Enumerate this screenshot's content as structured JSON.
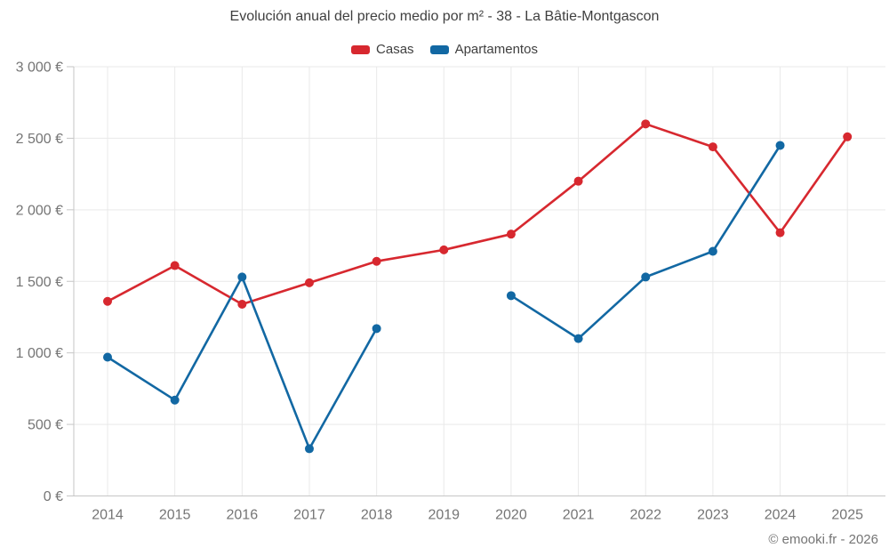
{
  "chart": {
    "title": "Evolución anual del precio medio por m² - 38 - La Bâtie-Montgascon",
    "footer": "© emooki.fr - 2026"
  },
  "chart_data": {
    "type": "line",
    "title": "Evolución anual del precio medio por m² - 38 - La Bâtie-Montgascon",
    "categories": [
      "2014",
      "2015",
      "2016",
      "2017",
      "2018",
      "2019",
      "2020",
      "2021",
      "2022",
      "2023",
      "2024",
      "2025"
    ],
    "series": [
      {
        "name": "Casas",
        "color": "#d7282f",
        "values": [
          1360,
          1610,
          1340,
          1490,
          1640,
          1720,
          1830,
          2200,
          2600,
          2440,
          1840,
          2510
        ]
      },
      {
        "name": "Apartamentos",
        "color": "#1268a3",
        "values": [
          970,
          670,
          1530,
          330,
          1170,
          null,
          1400,
          1100,
          1530,
          1710,
          2450,
          null
        ]
      }
    ],
    "xlabel": "",
    "ylabel": "",
    "ylim": [
      0,
      3000
    ],
    "ytick_step": 500,
    "ytick_labels": [
      "0 €",
      "500 €",
      "1 000 €",
      "1 500 €",
      "2 000 €",
      "2 500 €",
      "3 000 €"
    ],
    "grid": true,
    "legend_position": "top",
    "colors": {
      "gridline": "#e9e9e9",
      "axis_line": "#c6c6c6",
      "tick_label": "#757575",
      "title_text": "#3f3f3f"
    }
  }
}
